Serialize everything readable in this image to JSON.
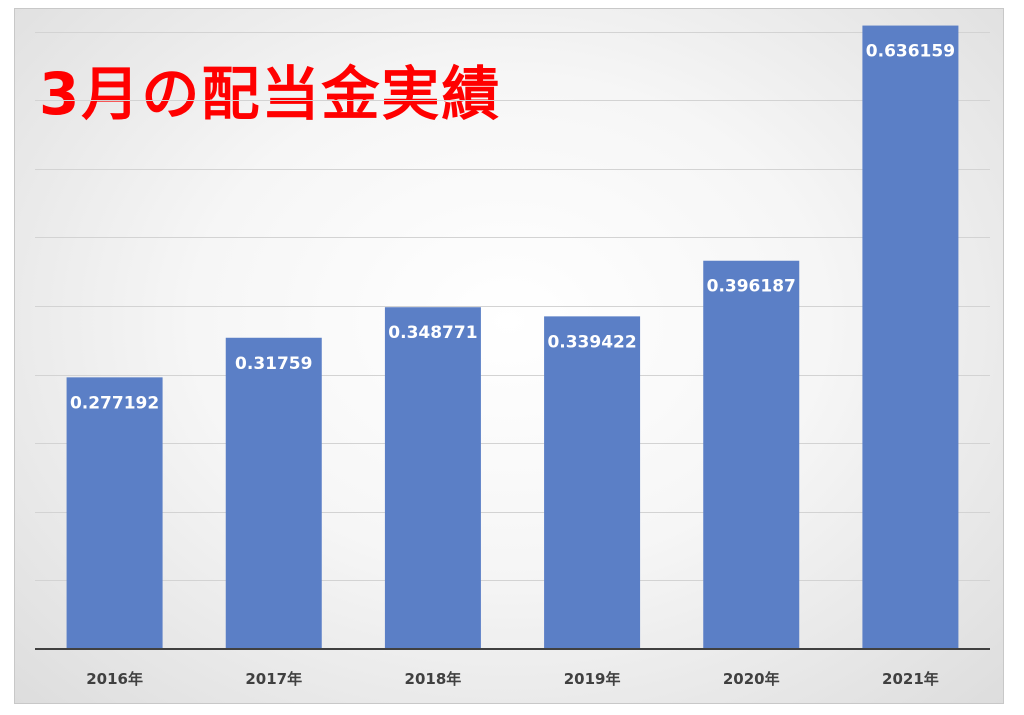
{
  "chart_data": {
    "type": "bar",
    "title": "3月の配当金実績",
    "xlabel": "",
    "ylabel": "",
    "categories": [
      "2016年",
      "2017年",
      "2018年",
      "2019年",
      "2020年",
      "2021年"
    ],
    "values": [
      0.277192,
      0.31759,
      0.348771,
      0.339422,
      0.396187,
      0.636159
    ],
    "data_labels": [
      "0.277192",
      "0.31759",
      "0.348771",
      "0.339422",
      "0.396187",
      "0.636159"
    ],
    "ylim": [
      0,
      0.7
    ],
    "grid": true,
    "legend": "none",
    "colors": {
      "bar": "#5b7fc6",
      "title": "#ff0000",
      "data_label": "#ffffff",
      "grid": "#d3d3d3",
      "axis": "#404040"
    }
  }
}
